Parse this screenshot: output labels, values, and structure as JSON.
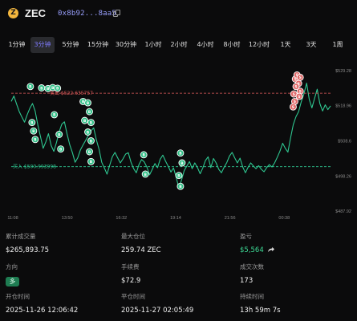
{
  "header": {
    "coin_glyph": "Z",
    "symbol": "ZEC",
    "address": "0x8b92...8aa5",
    "icons": [
      "zcash-logo-icon",
      "copy-icon"
    ]
  },
  "tabs": [
    {
      "label": "1分钟",
      "active": false
    },
    {
      "label": "3分钟",
      "active": true
    },
    {
      "label": "5分钟",
      "active": false
    },
    {
      "label": "15分钟",
      "active": false
    },
    {
      "label": "30分钟",
      "active": false
    },
    {
      "label": "1小时",
      "active": false
    },
    {
      "label": "2小时",
      "active": false
    },
    {
      "label": "4小时",
      "active": false
    },
    {
      "label": "8小时",
      "active": false
    },
    {
      "label": "12小时",
      "active": false
    },
    {
      "label": "1天",
      "active": false
    },
    {
      "label": "3天",
      "active": false
    },
    {
      "label": "1周",
      "active": false
    }
  ],
  "chart": {
    "sell_line_label": "卖出 $522.635757",
    "buy_line_label": "买入 $500.993998",
    "sell_price": 522.635757,
    "buy_price": 500.993998,
    "y_ticks": [
      "$529.28",
      "$518.96",
      "$508.6",
      "$498.26",
      "$487.92"
    ],
    "y_tick_values": [
      529.28,
      518.96,
      508.6,
      498.26,
      487.92
    ],
    "x_ticks": [
      "11:08",
      "13:50",
      "16:32",
      "19:14",
      "21:56",
      "00:38"
    ],
    "x_tick_frac": [
      0.0,
      0.17,
      0.34,
      0.51,
      0.68,
      0.85
    ],
    "colors": {
      "line": "#2fc791",
      "buy": "#2fc791",
      "sell": "#e05b5b",
      "marker_buy": "#2fbf86",
      "marker_sell": "#e06868"
    },
    "price_series": [
      520.2,
      521.8,
      519.5,
      517.2,
      515.6,
      514.1,
      516.3,
      518.2,
      519.6,
      517.4,
      513.2,
      509.8,
      506.4,
      508.3,
      510.7,
      507.2,
      505.5,
      508.1,
      511.2,
      513.5,
      514.2,
      510.6,
      507.4,
      505.1,
      502.3,
      503.6,
      505.9,
      507.4,
      508.8,
      510.2,
      511.6,
      512.4,
      508.9,
      506.1,
      502.3,
      500.6,
      498.8,
      501.4,
      503.9,
      505.2,
      503.6,
      502.1,
      503.3,
      504.7,
      505.1,
      502.3,
      500.4,
      499.2,
      501.6,
      503.1,
      502.4,
      500.8,
      498.6,
      500.2,
      501.9,
      500.7,
      503.2,
      504.4,
      502.6,
      501.1,
      499.4,
      500.6,
      497.9,
      494.6,
      497.1,
      499.8,
      501.2,
      502.5,
      500.4,
      502.1,
      500.7,
      498.9,
      500.6,
      502.8,
      503.9,
      500.7,
      503.4,
      502.1,
      500.2,
      499.2,
      500.8,
      502.2,
      504.1,
      505.2,
      503.6,
      502.1,
      503.5,
      500.9,
      499.2,
      500.8,
      502.1,
      501.2,
      500.4,
      501.3,
      500.2,
      499.5,
      500.7,
      501.6,
      500.9,
      502.1,
      503.8,
      505.6,
      507.9,
      506.4,
      505.3,
      509.6,
      513.4,
      515.7,
      517.2,
      520.1,
      522.4,
      525.6,
      520.8,
      518.3,
      521.1,
      523.8,
      519.6,
      517.4,
      519.2,
      517.8,
      518.9
    ],
    "trade_markers": [
      {
        "type": "sell",
        "x": 0.89,
        "y": 526.8
      },
      {
        "type": "sell",
        "x": 0.895,
        "y": 528.0
      },
      {
        "type": "sell",
        "x": 0.905,
        "y": 527.3
      },
      {
        "type": "sell",
        "x": 0.9,
        "y": 525.5
      },
      {
        "type": "sell",
        "x": 0.892,
        "y": 524.6
      },
      {
        "type": "sell",
        "x": 0.905,
        "y": 523.2
      },
      {
        "type": "sell",
        "x": 0.885,
        "y": 522.4
      },
      {
        "type": "sell",
        "x": 0.902,
        "y": 521.7
      },
      {
        "type": "sell",
        "x": 0.888,
        "y": 520.2
      },
      {
        "type": "sell",
        "x": 0.883,
        "y": 518.6
      },
      {
        "type": "buy",
        "x": 0.06,
        "y": 524.6
      },
      {
        "type": "buy",
        "x": 0.095,
        "y": 524.2
      },
      {
        "type": "buy",
        "x": 0.115,
        "y": 524.0
      },
      {
        "type": "buy",
        "x": 0.13,
        "y": 524.3
      },
      {
        "type": "buy",
        "x": 0.145,
        "y": 524.1
      },
      {
        "type": "buy",
        "x": 0.065,
        "y": 514.0
      },
      {
        "type": "buy",
        "x": 0.07,
        "y": 511.5
      },
      {
        "type": "buy",
        "x": 0.075,
        "y": 509.0
      },
      {
        "type": "buy",
        "x": 0.135,
        "y": 516.3
      },
      {
        "type": "buy",
        "x": 0.15,
        "y": 510.5
      },
      {
        "type": "buy",
        "x": 0.155,
        "y": 506.2
      },
      {
        "type": "buy",
        "x": 0.225,
        "y": 520.2
      },
      {
        "type": "buy",
        "x": 0.24,
        "y": 519.8
      },
      {
        "type": "buy",
        "x": 0.245,
        "y": 517.2
      },
      {
        "type": "buy",
        "x": 0.23,
        "y": 514.6
      },
      {
        "type": "buy",
        "x": 0.25,
        "y": 514.0
      },
      {
        "type": "buy",
        "x": 0.24,
        "y": 511.2
      },
      {
        "type": "buy",
        "x": 0.25,
        "y": 508.6
      },
      {
        "type": "buy",
        "x": 0.245,
        "y": 505.4
      },
      {
        "type": "buy",
        "x": 0.25,
        "y": 502.5
      },
      {
        "type": "buy",
        "x": 0.415,
        "y": 504.5
      },
      {
        "type": "buy",
        "x": 0.42,
        "y": 498.8
      },
      {
        "type": "buy",
        "x": 0.53,
        "y": 505.0
      },
      {
        "type": "buy",
        "x": 0.535,
        "y": 502.1
      },
      {
        "type": "buy",
        "x": 0.525,
        "y": 498.4
      },
      {
        "type": "buy",
        "x": 0.53,
        "y": 495.2
      }
    ]
  },
  "stats": {
    "cumulative_volume_label": "累计成交量",
    "cumulative_volume_value": "$265,893.75",
    "max_position_label": "最大仓位",
    "max_position_value": "259.74 ZEC",
    "pnl_label": "盈亏",
    "pnl_value": "$5,564",
    "direction_label": "方向",
    "direction_value": "多",
    "fee_label": "手续费",
    "fee_value": "$72.9",
    "trade_count_label": "成交次数",
    "trade_count_value": "173",
    "open_time_label": "开仓时间",
    "open_time_value": "2025-11-26 12:06:42",
    "close_time_label": "平仓时间",
    "close_time_value": "2025-11-27 02:05:49",
    "duration_label": "持续时间",
    "duration_value": "13h 59m 7s"
  }
}
